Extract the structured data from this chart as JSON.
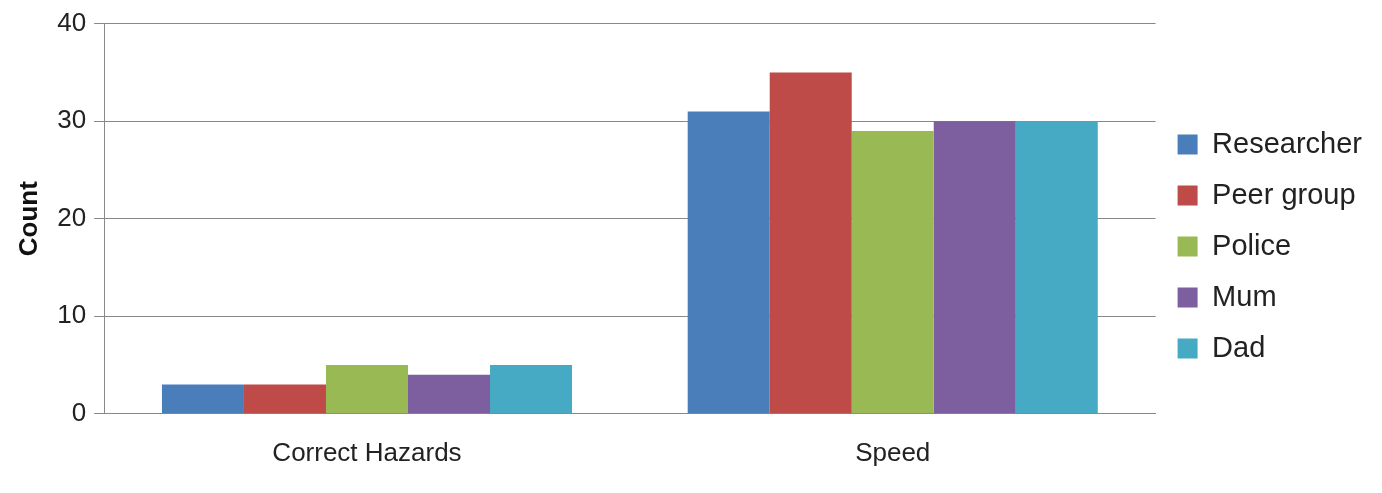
{
  "chart_data": {
    "type": "bar",
    "ylabel": "Count",
    "categories": [
      "Correct Hazards",
      "Speed"
    ],
    "series": [
      {
        "name": "Researcher",
        "color": "#4a7ebb",
        "values": [
          3,
          31
        ]
      },
      {
        "name": "Peer group",
        "color": "#be4b48",
        "values": [
          3,
          35
        ]
      },
      {
        "name": "Police",
        "color": "#98b954",
        "values": [
          5,
          29
        ]
      },
      {
        "name": "Mum",
        "color": "#7d5fa0",
        "values": [
          4,
          30
        ]
      },
      {
        "name": "Dad",
        "color": "#46aac5",
        "values": [
          5,
          30
        ]
      }
    ],
    "ylim": [
      0,
      40
    ],
    "yticks": [
      0,
      10,
      20,
      30,
      40
    ],
    "grid": "y",
    "legend": "right"
  }
}
